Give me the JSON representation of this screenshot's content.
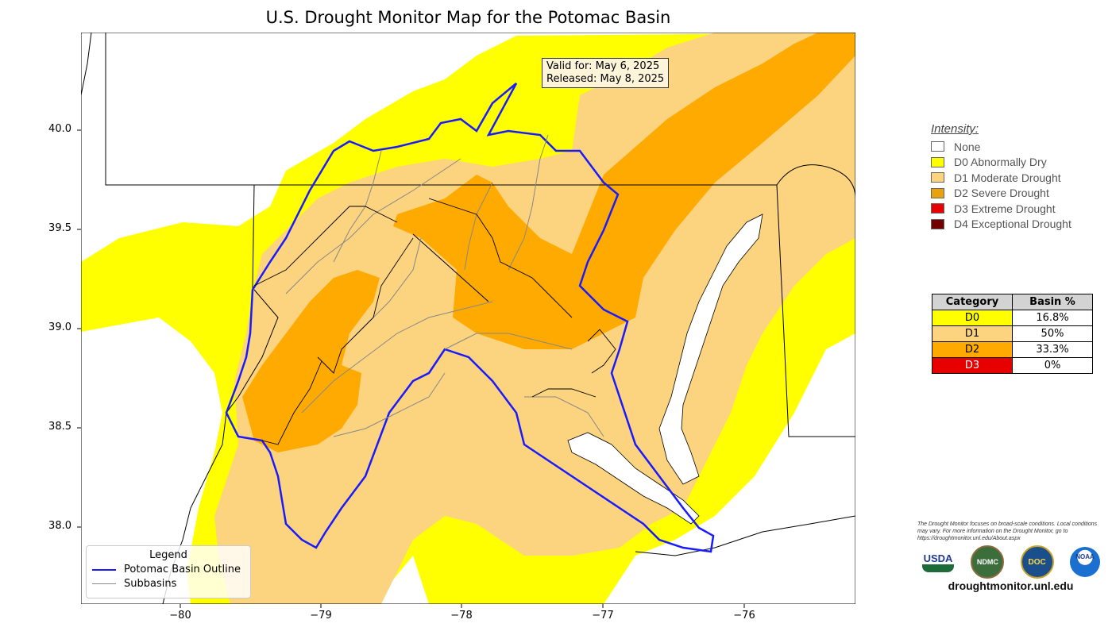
{
  "title": "U.S. Drought Monitor Map for the Potomac Basin",
  "valid_for": "Valid for: May 6, 2025",
  "released": "Released: May 8, 2025",
  "axis": {
    "x_ticks": [
      "−80",
      "−79",
      "−78",
      "−77",
      "−76"
    ],
    "x_values": [
      -80,
      -79,
      -78,
      -77,
      -76
    ],
    "y_ticks": [
      "40.0",
      "39.5",
      "39.0",
      "38.5",
      "38.0"
    ],
    "y_values": [
      40.0,
      39.5,
      39.0,
      38.5,
      38.0
    ],
    "x_range": [
      -80.7,
      -75.2
    ],
    "y_range": [
      37.6,
      40.5
    ]
  },
  "legend": {
    "title": "Legend",
    "items": [
      {
        "label": "Potomac Basin Outline",
        "color": "#1a1aff"
      },
      {
        "label": "Subbasins",
        "color": "#888888"
      }
    ]
  },
  "intensity": {
    "title": "Intensity:",
    "items": [
      {
        "label": "None",
        "color": "#ffffff"
      },
      {
        "label": "D0 Abnormally Dry",
        "color": "#ffff00"
      },
      {
        "label": "D1 Moderate Drought",
        "color": "#fcd37f"
      },
      {
        "label": "D2 Severe Drought",
        "color": "#e7a20f"
      },
      {
        "label": "D3 Extreme Drought",
        "color": "#e60000"
      },
      {
        "label": "D4 Exceptional Drought",
        "color": "#730000"
      }
    ]
  },
  "category_table": {
    "headers": [
      "Category",
      "Basin %"
    ],
    "rows": [
      {
        "category": "D0",
        "percent": "16.8%",
        "color": "#ffff00",
        "text_color": "#000000"
      },
      {
        "category": "D1",
        "percent": "50%",
        "color": "#fcd37f",
        "text_color": "#000000"
      },
      {
        "category": "D2",
        "percent": "33.3%",
        "color": "#ffaa00",
        "text_color": "#000000"
      },
      {
        "category": "D3",
        "percent": "0%",
        "color": "#e60000",
        "text_color": "#ffffff"
      }
    ]
  },
  "footnote": "The Drought Monitor focuses on broad-scale conditions. Local conditions may vary. For more information on the Drought Monitor, go to https://droughtmonitor.unl.edu/About.aspx",
  "logos": [
    "USDA",
    "NDMC",
    "DOC",
    "NOAA"
  ],
  "url": "droughtmonitor.unl.edu",
  "colors": {
    "d0": "#ffff00",
    "d1": "#fcd37f",
    "d2": "#ffaa00",
    "basin_outline": "#1a1aff",
    "subbasin": "#888888",
    "water": "#ffffff"
  }
}
